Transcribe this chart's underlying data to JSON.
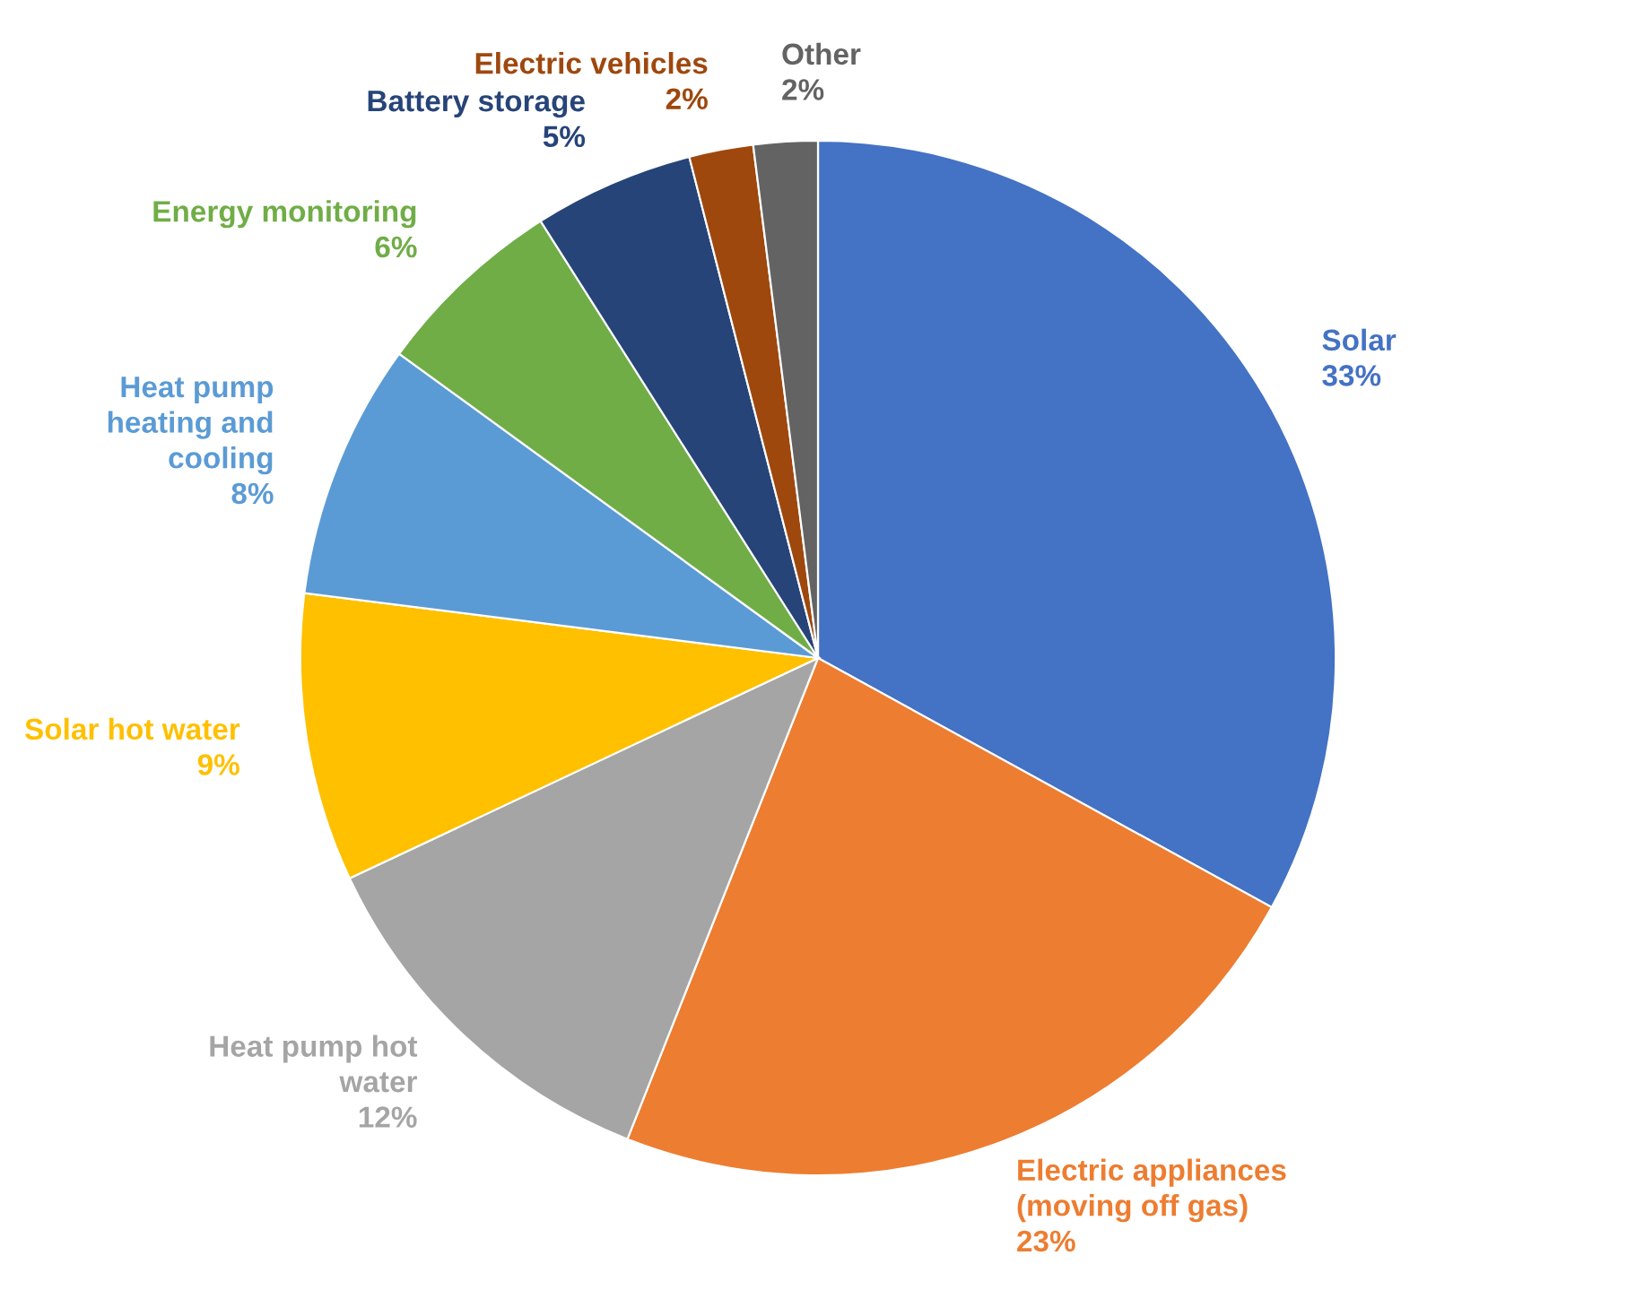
{
  "chart_data": {
    "type": "pie",
    "categories": [
      "Solar",
      "Electric appliances\n(moving off gas)",
      "Heat pump hot\nwater",
      "Solar hot water",
      "Heat pump\nheating and\ncooling",
      "Energy monitoring",
      "Battery storage",
      "Electric vehicles",
      "Other"
    ],
    "values": [
      33,
      23,
      12,
      9,
      8,
      6,
      5,
      2,
      2
    ],
    "value_labels": [
      "33%",
      "23%",
      "12%",
      "9%",
      "8%",
      "6%",
      "5%",
      "2%",
      "2%"
    ],
    "colors": [
      "#4472c4",
      "#ed7d31",
      "#a5a5a5",
      "#ffc000",
      "#5b9bd5",
      "#70ad47",
      "#264478",
      "#9e480e",
      "#636363"
    ],
    "legend": false
  }
}
